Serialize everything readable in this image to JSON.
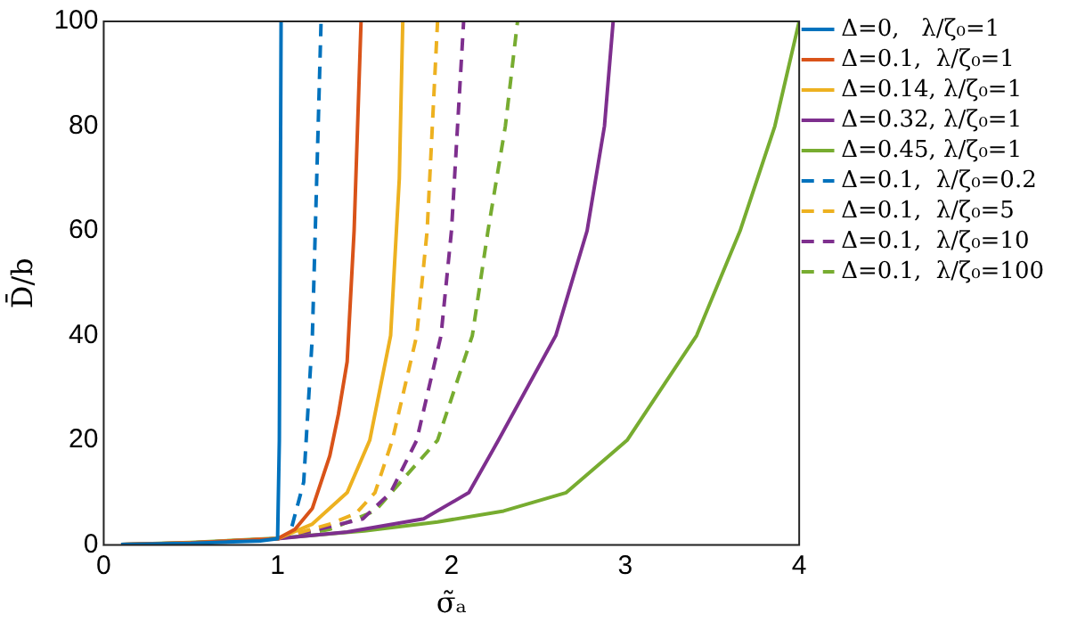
{
  "chart_data": {
    "type": "line",
    "xlabel": "σ̃ₐ",
    "ylabel": "D̄/b",
    "xlim": [
      0,
      4
    ],
    "xticks": [
      0,
      1,
      2,
      3,
      4
    ],
    "ylim": [
      0,
      100
    ],
    "yticks": [
      0,
      20,
      40,
      60,
      80,
      100
    ],
    "grid": false,
    "legend": "right",
    "marker": "none",
    "series": [
      {
        "name": "Δ=0,   λ/ζ₀=1",
        "color": "#0072bd",
        "line_style": "solid",
        "x": [
          0.1,
          0.5,
          0.9,
          1,
          1.01,
          1.02
        ],
        "values": [
          0.1,
          0.3,
          0.8,
          1.2,
          20,
          100
        ]
      },
      {
        "name": "Δ=0.1,  λ/ζ₀=1",
        "color": "#d95319",
        "line_style": "solid",
        "x": [
          0.1,
          0.5,
          1,
          1.1,
          1.2,
          1.3,
          1.35,
          1.4,
          1.44,
          1.48
        ],
        "values": [
          0.1,
          0.4,
          1.2,
          3,
          7,
          17,
          25,
          35,
          60,
          100
        ]
      },
      {
        "name": "Δ=0.14, λ/ζ₀=1",
        "color": "#edb120",
        "line_style": "solid",
        "x": [
          0.1,
          0.5,
          1,
          1.2,
          1.4,
          1.53,
          1.65,
          1.7,
          1.72
        ],
        "values": [
          0.1,
          0.4,
          1.2,
          4,
          10,
          20,
          40,
          70,
          100
        ]
      },
      {
        "name": "Δ=0.32, λ/ζ₀=1",
        "color": "#7e2f8e",
        "line_style": "solid",
        "x": [
          0.1,
          0.5,
          1,
          1.4,
          1.84,
          2.1,
          2.27,
          2.6,
          2.78,
          2.88,
          2.93
        ],
        "values": [
          0.1,
          0.4,
          1.2,
          2.5,
          5,
          10,
          20,
          40,
          60,
          80,
          100
        ]
      },
      {
        "name": "Δ=0.45, λ/ζ₀=1",
        "color": "#77ac30",
        "line_style": "solid",
        "x": [
          0.1,
          0.5,
          1,
          1.5,
          1.92,
          2.3,
          2.66,
          3.01,
          3.41,
          3.66,
          3.86,
          4
        ],
        "values": [
          0.1,
          0.5,
          1.3,
          2.7,
          4.4,
          6.5,
          10,
          20,
          40,
          60,
          80,
          100
        ]
      },
      {
        "name": "Δ=0.1,  λ/ζ₀=0.2",
        "color": "#0072bd",
        "line_style": "dashed",
        "x": [
          1,
          1.07,
          1.15,
          1.2,
          1.25
        ],
        "values": [
          1.2,
          2,
          12,
          40,
          100
        ]
      },
      {
        "name": "Δ=0.1,  λ/ζ₀=5",
        "color": "#edb120",
        "line_style": "dashed",
        "x": [
          1,
          1.3,
          1.45,
          1.56,
          1.66,
          1.8,
          1.86,
          1.92
        ],
        "values": [
          1.2,
          4,
          6,
          10,
          20,
          40,
          60,
          100
        ]
      },
      {
        "name": "Δ=0.1,  λ/ζ₀=10",
        "color": "#7e2f8e",
        "line_style": "dashed",
        "x": [
          1,
          1.3,
          1.49,
          1.65,
          1.8,
          1.94,
          2,
          2.07
        ],
        "values": [
          1.2,
          3.5,
          5,
          10,
          20,
          40,
          60,
          100
        ]
      },
      {
        "name": "Δ=0.1,  λ/ζ₀=100",
        "color": "#77ac30",
        "line_style": "dashed",
        "x": [
          1,
          1.3,
          1.56,
          1.92,
          2.12,
          2.21,
          2.31,
          2.38
        ],
        "values": [
          1.2,
          3,
          6.5,
          20,
          40,
          60,
          80,
          100
        ]
      }
    ]
  }
}
